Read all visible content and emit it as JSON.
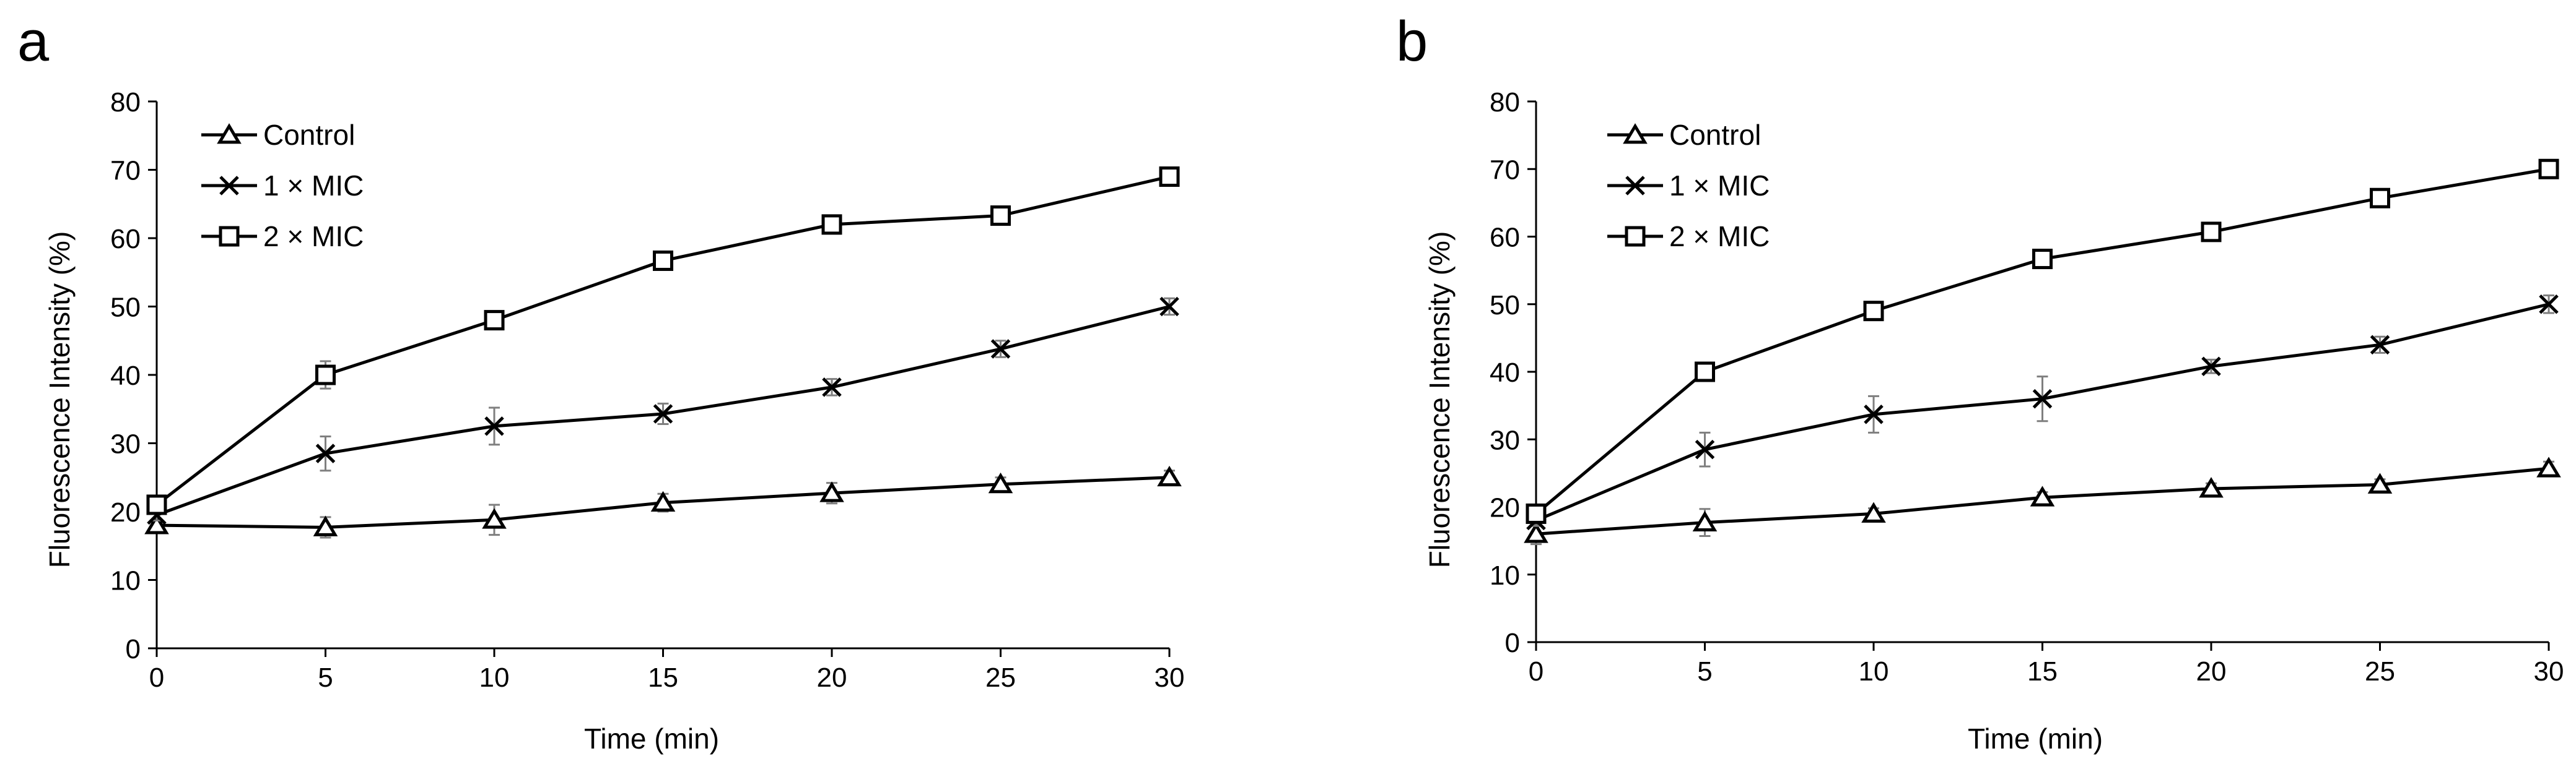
{
  "figure": {
    "background": "#ffffff",
    "line_color": "#000000",
    "errorbar_color": "#7f7f7f"
  },
  "chart_data": [
    {
      "panel_label": "a",
      "type": "line",
      "xlabel": "Time (min)",
      "ylabel": "Fluorescence Intensity (%)",
      "xlim": [
        0,
        30
      ],
      "ylim": [
        0,
        80
      ],
      "xticks": [
        0,
        5,
        10,
        15,
        20,
        25,
        30
      ],
      "yticks": [
        0,
        10,
        20,
        30,
        40,
        50,
        60,
        70,
        80
      ],
      "x": [
        0,
        5,
        10,
        15,
        20,
        25,
        30
      ],
      "legend_position": "top-left",
      "grid": false,
      "series": [
        {
          "name": "Control",
          "marker": "triangle",
          "values": [
            18,
            17.7,
            18.8,
            21.3,
            22.7,
            24,
            25
          ],
          "errors": [
            0.8,
            1.5,
            2.2,
            1.3,
            1.5,
            1,
            1
          ]
        },
        {
          "name": "1 × MIC",
          "marker": "x",
          "values": [
            19.5,
            28.5,
            32.5,
            34.3,
            38.2,
            43.8,
            50
          ],
          "errors": [
            0.8,
            2.5,
            2.7,
            1.5,
            1.2,
            1.2,
            1.2
          ]
        },
        {
          "name": "2 × MIC",
          "marker": "square",
          "values": [
            21,
            40,
            48,
            56.7,
            62,
            63.3,
            69
          ],
          "errors": [
            0.8,
            2,
            1,
            0.8,
            0.6,
            0.6,
            0.6
          ]
        }
      ]
    },
    {
      "panel_label": "b",
      "type": "line",
      "xlabel": "Time (min)",
      "ylabel": "Fluorescence Intensity (%)",
      "xlim": [
        0,
        30
      ],
      "ylim": [
        0,
        80
      ],
      "xticks": [
        0,
        5,
        10,
        15,
        20,
        25,
        30
      ],
      "yticks": [
        0,
        10,
        20,
        30,
        40,
        50,
        60,
        70,
        80
      ],
      "x": [
        0,
        5,
        10,
        15,
        20,
        25,
        30
      ],
      "legend_position": "top-left",
      "grid": false,
      "series": [
        {
          "name": "Control",
          "marker": "triangle",
          "values": [
            16,
            17.7,
            19,
            21.4,
            22.7,
            23.3,
            25.7
          ],
          "errors": [
            1.5,
            2,
            0.8,
            0.8,
            0.8,
            0.8,
            1
          ]
        },
        {
          "name": "1 × MIC",
          "marker": "x",
          "values": [
            18,
            28.5,
            33.7,
            36,
            40.8,
            44,
            50
          ],
          "errors": [
            0.8,
            2.5,
            2.7,
            3.3,
            1,
            1.2,
            1.3
          ]
        },
        {
          "name": "2 × MIC",
          "marker": "square",
          "values": [
            19,
            40,
            49,
            56.7,
            60.7,
            65.7,
            70
          ],
          "errors": [
            0.8,
            0.8,
            0.8,
            0.8,
            0.8,
            0.6,
            0.6
          ]
        }
      ]
    }
  ]
}
